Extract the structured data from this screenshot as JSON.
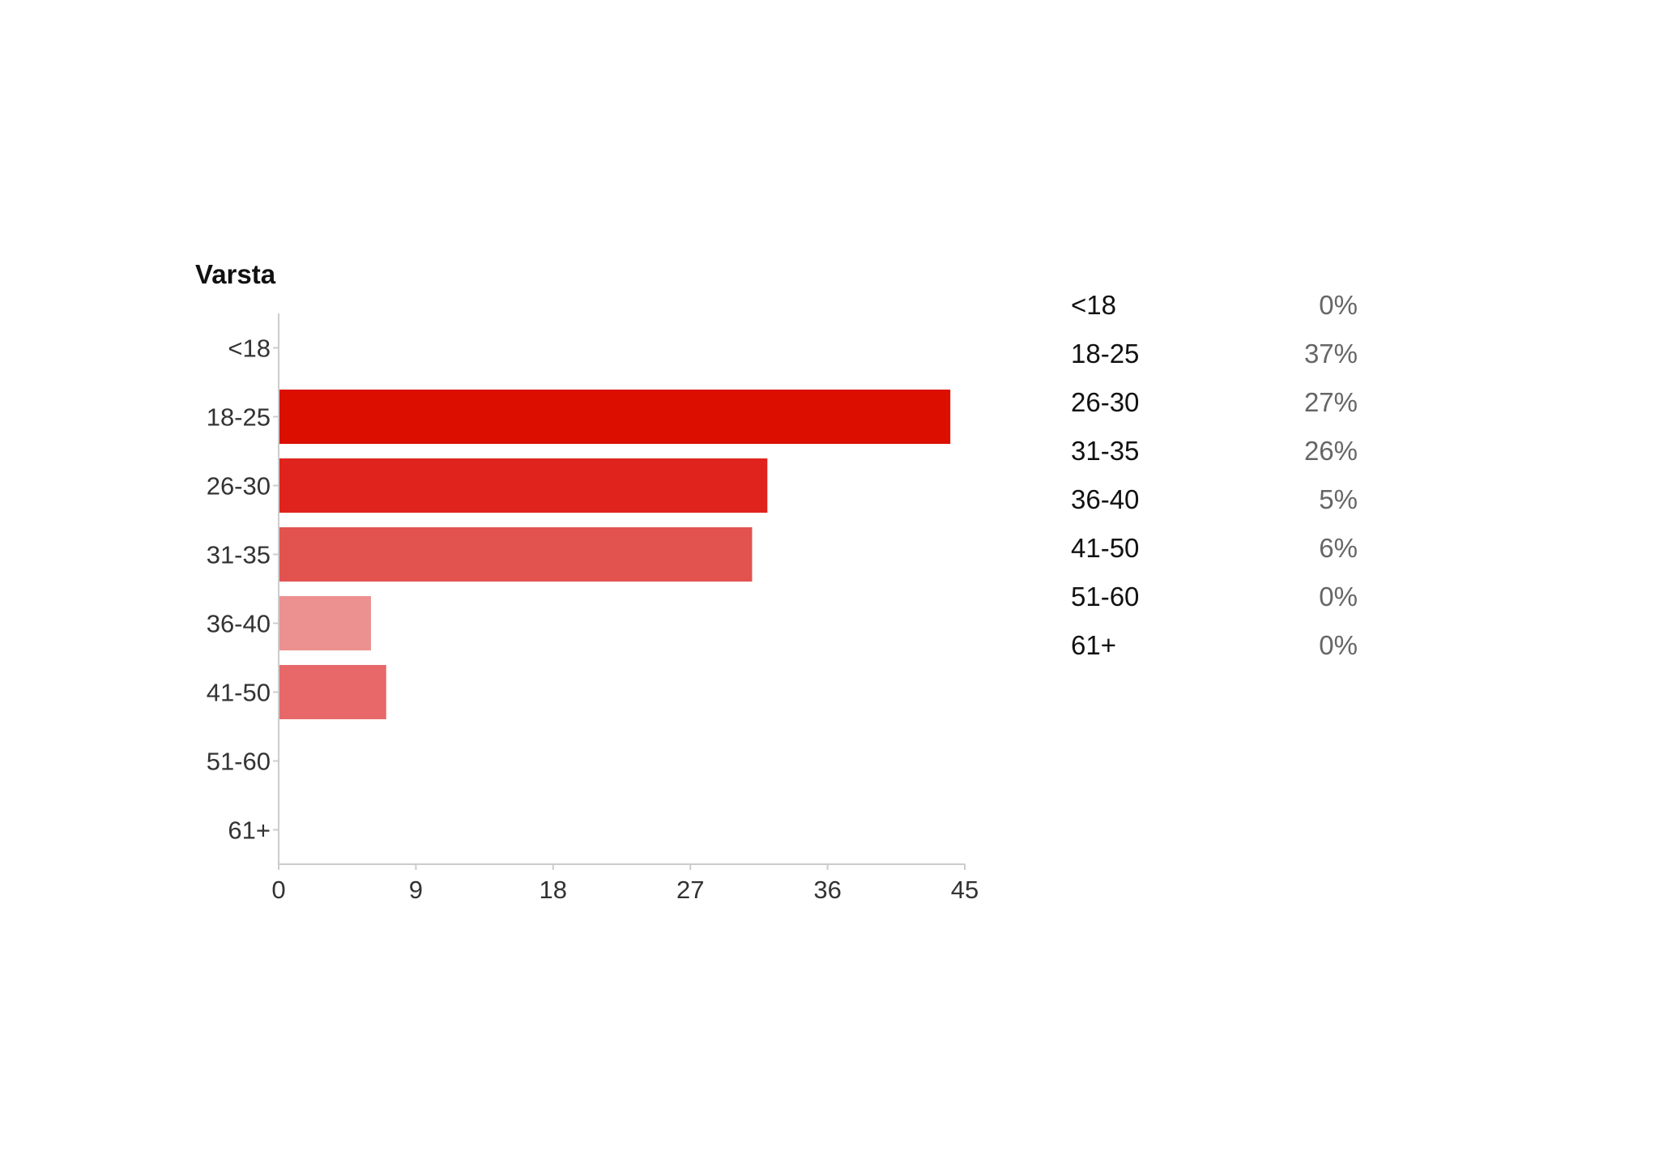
{
  "chart_data": {
    "type": "bar",
    "orientation": "horizontal",
    "title": "Varsta",
    "categories": [
      "<18",
      "18-25",
      "26-30",
      "31-35",
      "36-40",
      "41-50",
      "51-60",
      "61+"
    ],
    "values": [
      0,
      44,
      32,
      31,
      6,
      7,
      0,
      0
    ],
    "xlim": [
      0,
      45
    ],
    "xticks": [
      "0",
      "9",
      "18",
      "27",
      "36",
      "45"
    ],
    "grid": false,
    "bar_colors": [
      "#dc0e00",
      "#dc0e00",
      "#e0231c",
      "#e25350",
      "#ec9090",
      "#e8686a",
      "#dc0e00",
      "#dc0e00"
    ],
    "legend": {
      "placement": "right",
      "items": [
        {
          "label": "<18",
          "percent": "0%"
        },
        {
          "label": "18-25",
          "percent": "37%"
        },
        {
          "label": "26-30",
          "percent": "27%"
        },
        {
          "label": "31-35",
          "percent": "26%"
        },
        {
          "label": "36-40",
          "percent": "5%"
        },
        {
          "label": "41-50",
          "percent": "6%"
        },
        {
          "label": "51-60",
          "percent": "0%"
        },
        {
          "label": "61+",
          "percent": "0%"
        }
      ]
    }
  }
}
